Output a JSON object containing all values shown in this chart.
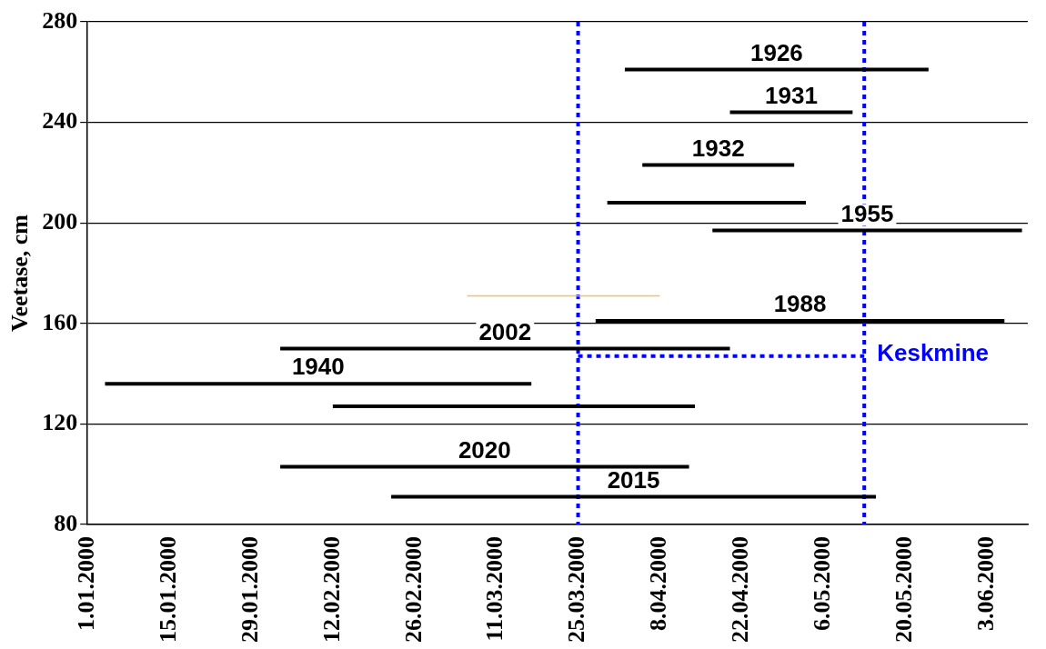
{
  "chart_data": {
    "type": "line",
    "ylabel": "Veetase, cm",
    "xlim": [
      "2000-01-01",
      "2000-06-10"
    ],
    "xticks": [
      {
        "value": "2000-01-01",
        "label": "1.01.2000"
      },
      {
        "value": "2000-01-15",
        "label": "15.01.2000"
      },
      {
        "value": "2000-01-29",
        "label": "29.01.2000"
      },
      {
        "value": "2000-02-12",
        "label": "12.02.2000"
      },
      {
        "value": "2000-02-26",
        "label": "26.02.2000"
      },
      {
        "value": "2000-03-11",
        "label": "11.03.2000"
      },
      {
        "value": "2000-03-25",
        "label": "25.03.2000"
      },
      {
        "value": "2000-04-08",
        "label": "8.04.2000"
      },
      {
        "value": "2000-04-22",
        "label": "22.04.2000"
      },
      {
        "value": "2000-05-06",
        "label": "6.05.2000"
      },
      {
        "value": "2000-05-20",
        "label": "20.05.2000"
      },
      {
        "value": "2000-06-03",
        "label": "3.06.2000"
      }
    ],
    "ylim": [
      80,
      280
    ],
    "yticks": [
      80,
      120,
      160,
      200,
      240,
      280
    ],
    "grid": "y",
    "marker": "none",
    "line_style": "solid",
    "legend": false,
    "series": [
      {
        "name": "1926",
        "color": "#000000",
        "x": [
          "2000-04-02",
          "2000-05-24"
        ],
        "values": [
          261,
          261
        ]
      },
      {
        "name": "1931",
        "color": "#000000",
        "x": [
          "2000-04-20",
          "2000-05-11"
        ],
        "values": [
          244,
          244
        ]
      },
      {
        "name": "1932",
        "color": "#000000",
        "x": [
          "2000-04-05",
          "2000-05-01"
        ],
        "values": [
          223,
          223
        ]
      },
      {
        "color": "#000000",
        "x": [
          "2000-03-30",
          "2000-05-03"
        ],
        "values": [
          208,
          208
        ]
      },
      {
        "name": "1955",
        "color": "#000000",
        "x": [
          "2000-04-17",
          "2000-06-09"
        ],
        "values": [
          197,
          197
        ]
      },
      {
        "color": "#f5c060",
        "x": [
          "2000-03-06",
          "2000-04-08"
        ],
        "values": [
          171,
          171
        ]
      },
      {
        "name": "1988",
        "color": "#000000",
        "x": [
          "2000-03-28",
          "2000-06-06"
        ],
        "values": [
          161,
          161
        ]
      },
      {
        "name": "2002",
        "color": "#000000",
        "x": [
          "2000-02-03",
          "2000-04-20"
        ],
        "values": [
          150,
          150
        ]
      },
      {
        "name": "1940",
        "color": "#000000",
        "x": [
          "2000-01-04",
          "2000-03-17"
        ],
        "values": [
          136,
          136
        ]
      },
      {
        "color": "#000000",
        "x": [
          "2000-02-12",
          "2000-04-14"
        ],
        "values": [
          127,
          127
        ]
      },
      {
        "name": "2020",
        "color": "#000000",
        "x": [
          "2000-02-03",
          "2000-04-13"
        ],
        "values": [
          103,
          103
        ]
      },
      {
        "name": "2015",
        "color": "#000000",
        "x": [
          "2000-02-22",
          "2000-05-15"
        ],
        "values": [
          91,
          91
        ]
      },
      {
        "name": "Keskmine",
        "color": "#0000ff",
        "line_style": "dotted",
        "x": [
          "2000-03-25",
          "2000-05-13"
        ],
        "values": [
          147,
          147
        ]
      }
    ],
    "ref_lines": [
      {
        "axis": "x",
        "value": "2000-03-25",
        "color": "#0000ff",
        "line_style": "dotted"
      },
      {
        "axis": "x",
        "value": "2000-05-13",
        "color": "#0000ff",
        "line_style": "dotted"
      }
    ]
  }
}
